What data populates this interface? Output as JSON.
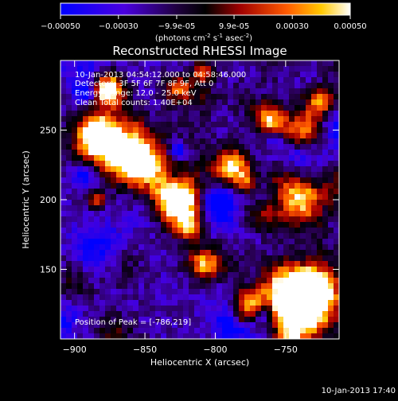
{
  "chart_data": {
    "type": "heatmap",
    "title": "Reconstructed RHESSI Image",
    "xlabel": "Heliocentric X (arcsec)",
    "ylabel": "Heliocentric Y (arcsec)",
    "xlim": [
      -910,
      -712
    ],
    "ylim": [
      100,
      300
    ],
    "xticks": [
      -900,
      -850,
      -800,
      -750
    ],
    "yticks": [
      150,
      200,
      250
    ],
    "colorbar": {
      "ticks": [
        "-0.00050",
        "-0.00030",
        "-9.9e-05",
        "9.9e-05",
        "0.00030",
        "0.00050"
      ],
      "label": "(photons cm",
      "label_exp1": "-2",
      "label_mid": " s",
      "label_exp2": "-1",
      "label_end": " asec",
      "label_exp3": "-2",
      "label_close": ")",
      "range": [
        -0.0005,
        0.0005
      ],
      "colors": [
        "#0000ff",
        "#4400dd",
        "#000000",
        "#a00000",
        "#ff6600",
        "#ffd000",
        "#ffffff"
      ]
    },
    "peak_position": [
      -786,
      219
    ],
    "grid": false
  },
  "annotations": {
    "time_range": "10-Jan-2013 04:54:12.000 to 04:58:46.000",
    "detectors": "Detectors: 3F 5F 6F 7F 8F 9F, Att 0",
    "energy": "Energy Range: 12.0 - 25.0 keV",
    "method": "Clean     Total counts: 1.40E+04",
    "peak": "Position of Peak = [-786,219]"
  },
  "footer": {
    "timestamp": "10-Jan-2013 17:40"
  }
}
